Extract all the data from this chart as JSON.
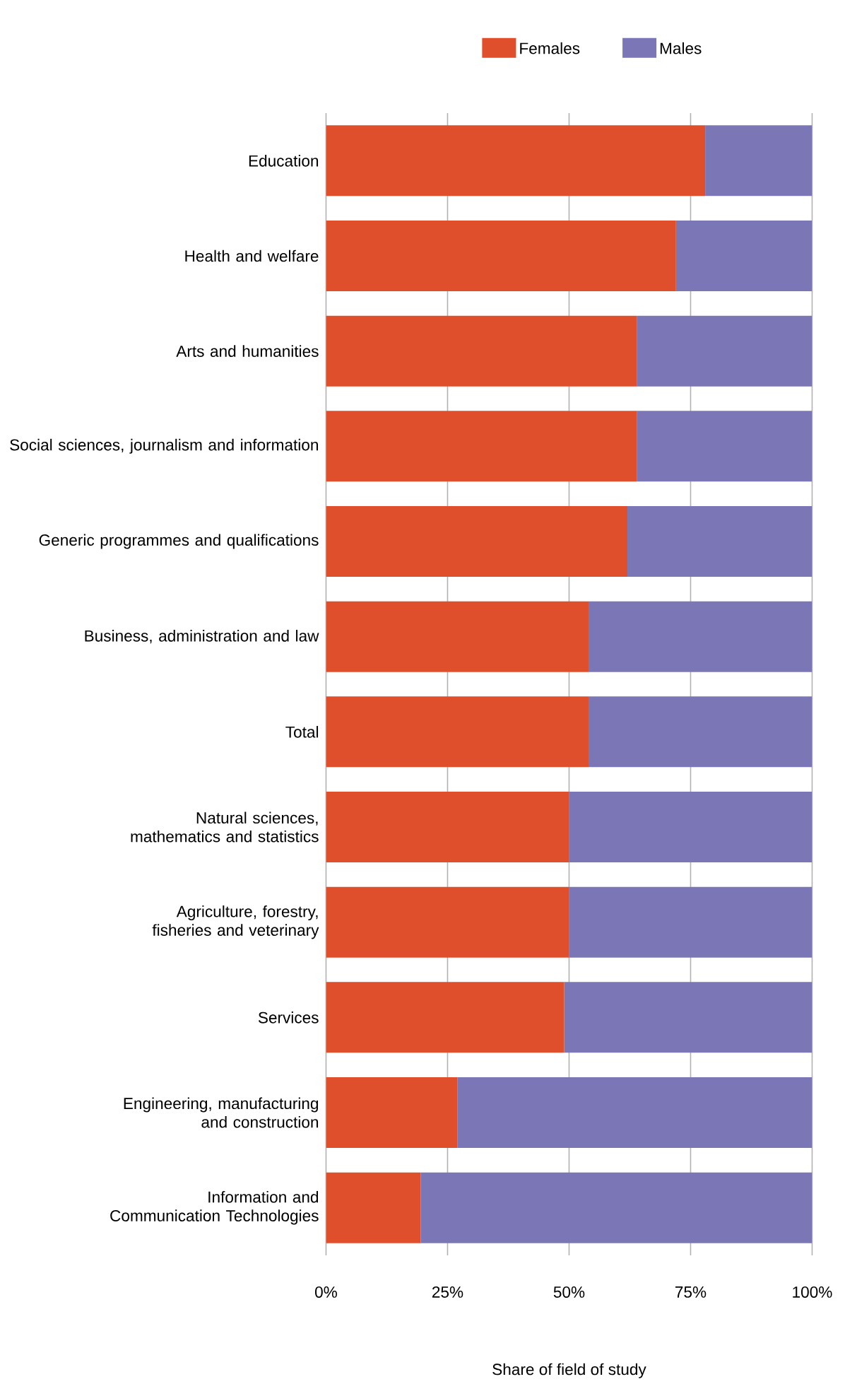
{
  "chart_data": {
    "type": "bar",
    "orientation": "horizontal",
    "stacked": true,
    "xlabel": "Share of field of study",
    "categories": [
      "Education",
      "Health and welfare",
      "Arts and humanities",
      "Social sciences, journalism and information",
      "Generic programmes and qualifications",
      "Business, administration and law",
      "Total",
      "Natural sciences, mathematics and statistics",
      "Agriculture, forestry, fisheries and veterinary",
      "Services",
      "Engineering, manufacturing and construction",
      "Information and Communication Technologies"
    ],
    "series": [
      {
        "name": "Females",
        "color": "#e04f2c",
        "values": [
          78,
          72,
          64,
          64,
          62,
          54,
          54,
          50,
          50,
          49,
          27,
          19.5
        ]
      },
      {
        "name": "Males",
        "color": "#7b77b6",
        "values": [
          22,
          28,
          36,
          36,
          38,
          46,
          46,
          50,
          50,
          51,
          73,
          80.5
        ]
      }
    ],
    "xlim": [
      0,
      100
    ],
    "xticks": [
      {
        "value": 0,
        "label": "0%"
      },
      {
        "value": 25,
        "label": "25%"
      },
      {
        "value": 50,
        "label": "50%"
      },
      {
        "value": 75,
        "label": "75%"
      },
      {
        "value": 100,
        "label": "100%"
      }
    ],
    "grid": "x",
    "legend": "top"
  }
}
